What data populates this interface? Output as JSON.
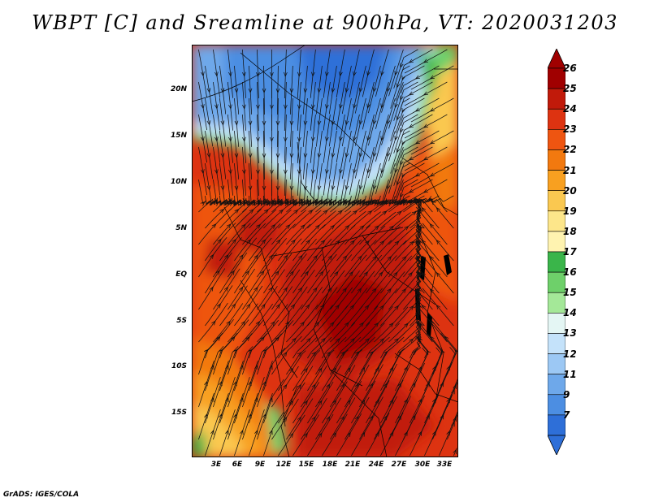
{
  "title": "WBPT [C] and Sreamline at 900hPa, VT: 2020031203",
  "credit": "GrADS: IGES/COLA",
  "lat_labels": [
    "20N",
    "15N",
    "10N",
    "5N",
    "EQ",
    "5S",
    "10S",
    "15S"
  ],
  "lon_labels": [
    "3E",
    "6E",
    "9E",
    "12E",
    "15E",
    "18E",
    "21E",
    "24E",
    "27E",
    "30E",
    "33E"
  ],
  "colorbar": {
    "labels": [
      "26",
      "25",
      "24",
      "23",
      "22",
      "21",
      "20",
      "19",
      "18",
      "17",
      "16",
      "15",
      "14",
      "13",
      "12",
      "11",
      "9",
      "7"
    ],
    "colors": [
      "#a00000",
      "#c11a0a",
      "#dd3311",
      "#ee5511",
      "#f2790f",
      "#f8a020",
      "#fac850",
      "#fde68a",
      "#fff3b0",
      "#3ab54a",
      "#6ed06a",
      "#a4e898",
      "#e4f6f4",
      "#c4e2fa",
      "#9cc8f4",
      "#6ea8ea",
      "#4c8ee2",
      "#2e6fd8"
    ]
  }
}
